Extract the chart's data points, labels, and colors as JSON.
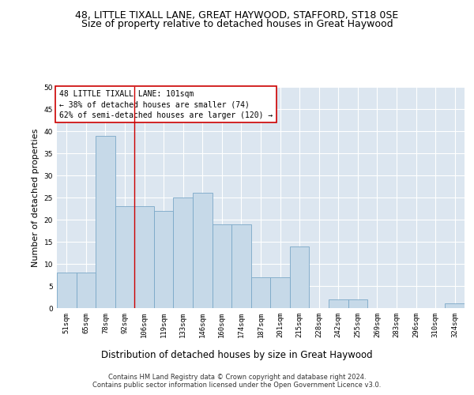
{
  "title": "48, LITTLE TIXALL LANE, GREAT HAYWOOD, STAFFORD, ST18 0SE",
  "subtitle": "Size of property relative to detached houses in Great Haywood",
  "xlabel": "Distribution of detached houses by size in Great Haywood",
  "ylabel": "Number of detached properties",
  "bar_labels": [
    "51sqm",
    "65sqm",
    "78sqm",
    "92sqm",
    "106sqm",
    "119sqm",
    "133sqm",
    "146sqm",
    "160sqm",
    "174sqm",
    "187sqm",
    "201sqm",
    "215sqm",
    "228sqm",
    "242sqm",
    "255sqm",
    "269sqm",
    "283sqm",
    "296sqm",
    "310sqm",
    "324sqm"
  ],
  "bar_values": [
    8,
    8,
    39,
    23,
    23,
    22,
    25,
    26,
    19,
    19,
    7,
    7,
    14,
    0,
    2,
    2,
    0,
    0,
    0,
    0,
    1
  ],
  "bar_color": "#c6d9e8",
  "bar_edge_color": "#7aa8c8",
  "background_color": "#dce6f0",
  "grid_color": "#ffffff",
  "annotation_box_text": "48 LITTLE TIXALL LANE: 101sqm\n← 38% of detached houses are smaller (74)\n62% of semi-detached houses are larger (120) →",
  "vline_color": "#cc0000",
  "vline_x": 3.5,
  "ylim": [
    0,
    50
  ],
  "yticks": [
    0,
    5,
    10,
    15,
    20,
    25,
    30,
    35,
    40,
    45,
    50
  ],
  "footer_text": "Contains HM Land Registry data © Crown copyright and database right 2024.\nContains public sector information licensed under the Open Government Licence v3.0.",
  "title_fontsize": 9,
  "subtitle_fontsize": 9,
  "xlabel_fontsize": 8.5,
  "ylabel_fontsize": 8,
  "annotation_fontsize": 7,
  "tick_fontsize": 6.5,
  "footer_fontsize": 6
}
